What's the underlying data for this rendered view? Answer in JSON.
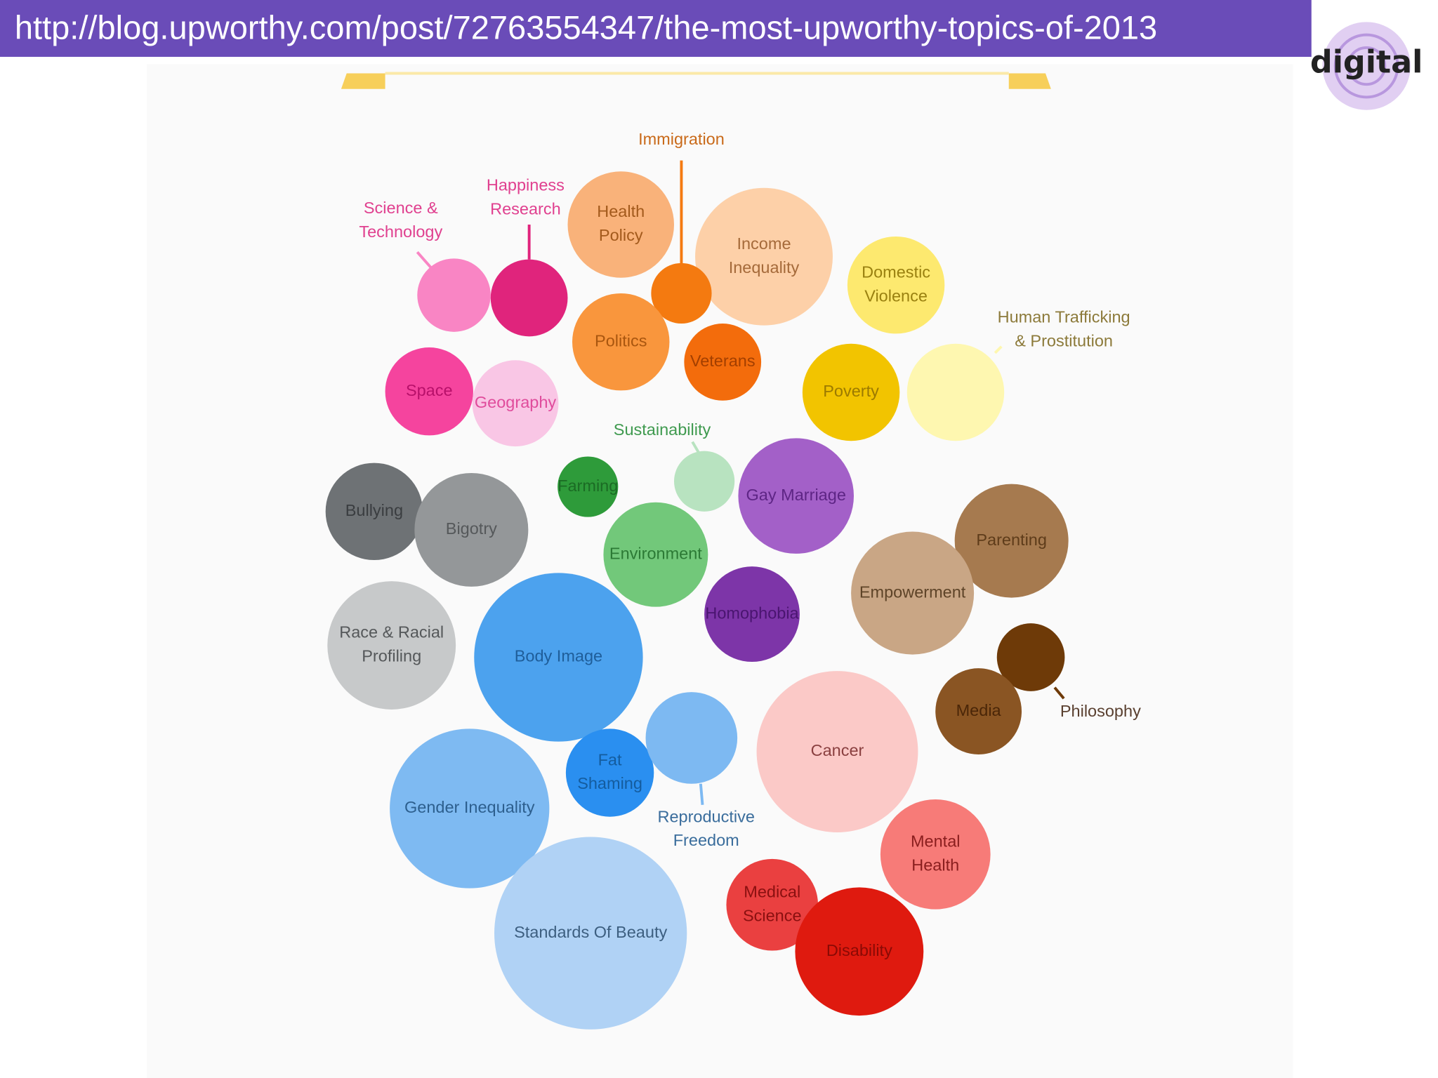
{
  "header": {
    "url": "http://blog.upworthy.com/post/72763554347/the-most-upworthy-topics-of-2013"
  },
  "logo": {
    "text": "digital"
  },
  "bubbles": [
    {
      "lines": [
        "Health",
        "Policy"
      ]
    },
    {
      "lines": [
        "Income",
        "Inequality"
      ]
    },
    {
      "lines": [
        "Immigration"
      ]
    },
    {
      "lines": [
        "Politics"
      ]
    },
    {
      "lines": [
        "Veterans"
      ]
    },
    {
      "lines": [
        "Science &",
        "Technology"
      ]
    },
    {
      "lines": [
        "Happiness",
        "Research"
      ]
    },
    {
      "lines": [
        "Space"
      ]
    },
    {
      "lines": [
        "Geography"
      ]
    },
    {
      "lines": [
        "Domestic",
        "Violence"
      ]
    },
    {
      "lines": [
        "Poverty"
      ]
    },
    {
      "lines": [
        "Human Trafficking",
        "& Prostitution"
      ]
    },
    {
      "lines": [
        "Sustainability"
      ]
    },
    {
      "lines": [
        "Farming"
      ]
    },
    {
      "lines": [
        "Environment"
      ]
    },
    {
      "lines": [
        "Gay Marriage"
      ]
    },
    {
      "lines": [
        "Homophobia"
      ]
    },
    {
      "lines": [
        "Bullying"
      ]
    },
    {
      "lines": [
        "Bigotry"
      ]
    },
    {
      "lines": [
        "Race & Racial",
        "Profiling"
      ]
    },
    {
      "lines": [
        "Body Image"
      ]
    },
    {
      "lines": [
        "Fat",
        "Shaming"
      ]
    },
    {
      "lines": [
        "Reproductive",
        "Freedom"
      ]
    },
    {
      "lines": [
        "Gender Inequality"
      ]
    },
    {
      "lines": [
        "Standards Of Beauty"
      ]
    },
    {
      "lines": [
        "Parenting"
      ]
    },
    {
      "lines": [
        "Empowerment"
      ]
    },
    {
      "lines": [
        "Philosophy"
      ]
    },
    {
      "lines": [
        "Media"
      ]
    },
    {
      "lines": [
        "Cancer"
      ]
    },
    {
      "lines": [
        "Mental",
        "Health"
      ]
    },
    {
      "lines": [
        "Medical",
        "Science"
      ]
    },
    {
      "lines": [
        "Disability"
      ]
    }
  ]
}
